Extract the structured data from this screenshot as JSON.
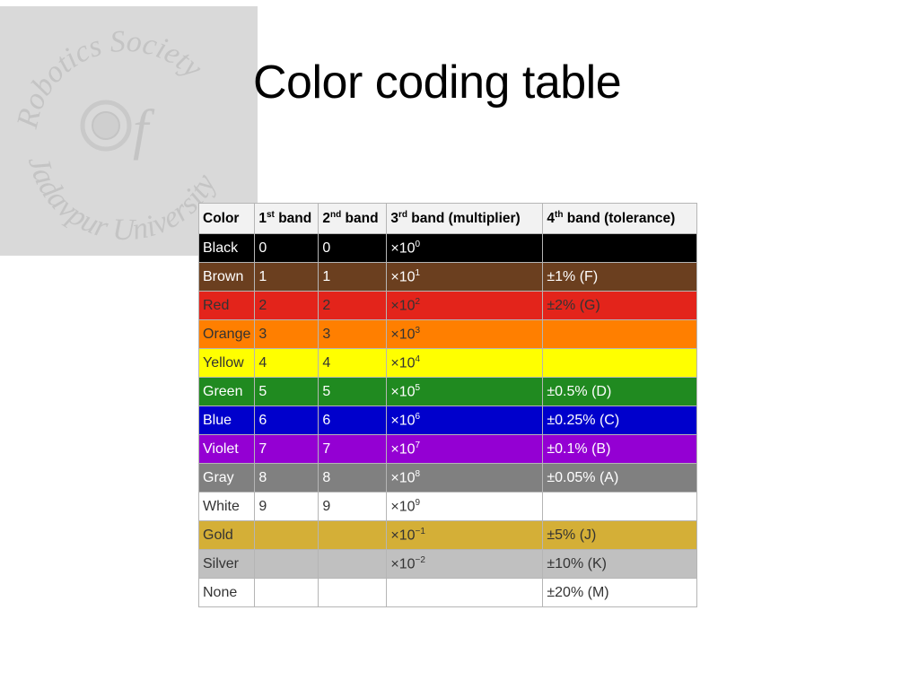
{
  "slide": {
    "title": "Color coding table"
  },
  "logo": {
    "top_text": "Robotics Society",
    "bottom_text": "Jadavpur University",
    "monogram": "f"
  },
  "table": {
    "headers": [
      {
        "base": "Color",
        "sup": "",
        "rest": ""
      },
      {
        "base": "1",
        "sup": "st",
        "rest": " band"
      },
      {
        "base": "2",
        "sup": "nd",
        "rest": " band"
      },
      {
        "base": "3",
        "sup": "rd",
        "rest": " band (multiplier)"
      },
      {
        "base": "4",
        "sup": "th",
        "rest": " band (tolerance)"
      }
    ],
    "rows": [
      {
        "color": "Black",
        "bg": "#000000",
        "fg": "#ffffff",
        "band1": "0",
        "band2": "0",
        "mult_base": "×10",
        "mult_exp": "0",
        "tolerance": ""
      },
      {
        "color": "Brown",
        "bg": "#6b3f1f",
        "fg": "#ffffff",
        "band1": "1",
        "band2": "1",
        "mult_base": "×10",
        "mult_exp": "1",
        "tolerance": "±1% (F)"
      },
      {
        "color": "Red",
        "bg": "#e3241b",
        "fg": "#333333",
        "band1": "2",
        "band2": "2",
        "mult_base": "×10",
        "mult_exp": "2",
        "tolerance": "±2% (G)"
      },
      {
        "color": "Orange",
        "bg": "#ff7f00",
        "fg": "#333333",
        "band1": "3",
        "band2": "3",
        "mult_base": "×10",
        "mult_exp": "3",
        "tolerance": ""
      },
      {
        "color": "Yellow",
        "bg": "#ffff00",
        "fg": "#333333",
        "band1": "4",
        "band2": "4",
        "mult_base": "×10",
        "mult_exp": "4",
        "tolerance": ""
      },
      {
        "color": "Green",
        "bg": "#208a20",
        "fg": "#ffffff",
        "band1": "5",
        "band2": "5",
        "mult_base": "×10",
        "mult_exp": "5",
        "tolerance": "±0.5% (D)"
      },
      {
        "color": "Blue",
        "bg": "#0000cc",
        "fg": "#ffffff",
        "band1": "6",
        "band2": "6",
        "mult_base": "×10",
        "mult_exp": "6",
        "tolerance": "±0.25% (C)"
      },
      {
        "color": "Violet",
        "bg": "#9400d3",
        "fg": "#ffffff",
        "band1": "7",
        "band2": "7",
        "mult_base": "×10",
        "mult_exp": "7",
        "tolerance": "±0.1% (B)"
      },
      {
        "color": "Gray",
        "bg": "#808080",
        "fg": "#ffffff",
        "band1": "8",
        "band2": "8",
        "mult_base": "×10",
        "mult_exp": "8",
        "tolerance": "±0.05% (A)"
      },
      {
        "color": "White",
        "bg": "#ffffff",
        "fg": "#333333",
        "band1": "9",
        "band2": "9",
        "mult_base": "×10",
        "mult_exp": "9",
        "tolerance": ""
      },
      {
        "color": "Gold",
        "bg": "#d4af37",
        "fg": "#333333",
        "band1": "",
        "band2": "",
        "mult_base": "×10",
        "mult_exp": "−1",
        "tolerance": "±5% (J)"
      },
      {
        "color": "Silver",
        "bg": "#c0c0c0",
        "fg": "#333333",
        "band1": "",
        "band2": "",
        "mult_base": "×10",
        "mult_exp": "−2",
        "tolerance": "±10% (K)"
      },
      {
        "color": "None",
        "bg": "#ffffff",
        "fg": "#333333",
        "band1": "",
        "band2": "",
        "mult_base": "",
        "mult_exp": "",
        "tolerance": "±20% (M)"
      }
    ]
  }
}
